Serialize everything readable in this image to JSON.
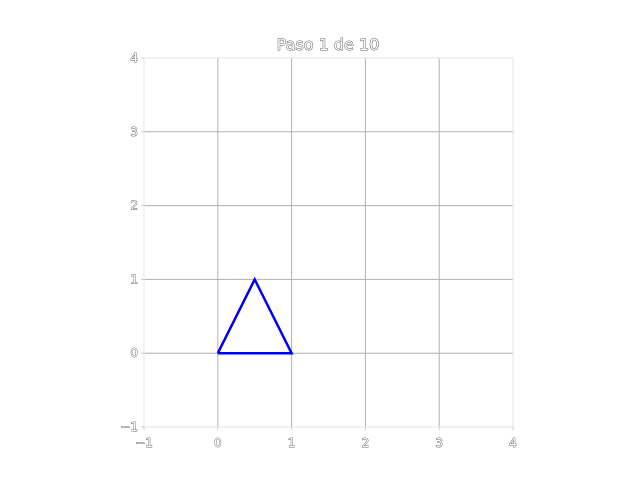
{
  "chart_data": {
    "type": "line",
    "title": "Paso 1 de 10",
    "xlabel": "",
    "ylabel": "",
    "xlim": [
      -1,
      4
    ],
    "ylim": [
      -1,
      4
    ],
    "xticks": [
      "−1",
      "0",
      "1",
      "2",
      "3",
      "4"
    ],
    "yticks": [
      "−1",
      "0",
      "1",
      "2",
      "3",
      "4"
    ],
    "grid": true,
    "series": [
      {
        "color": "#0000ee",
        "x": [
          0,
          0.5,
          1,
          0
        ],
        "y": [
          0,
          1,
          0,
          0
        ]
      }
    ]
  }
}
